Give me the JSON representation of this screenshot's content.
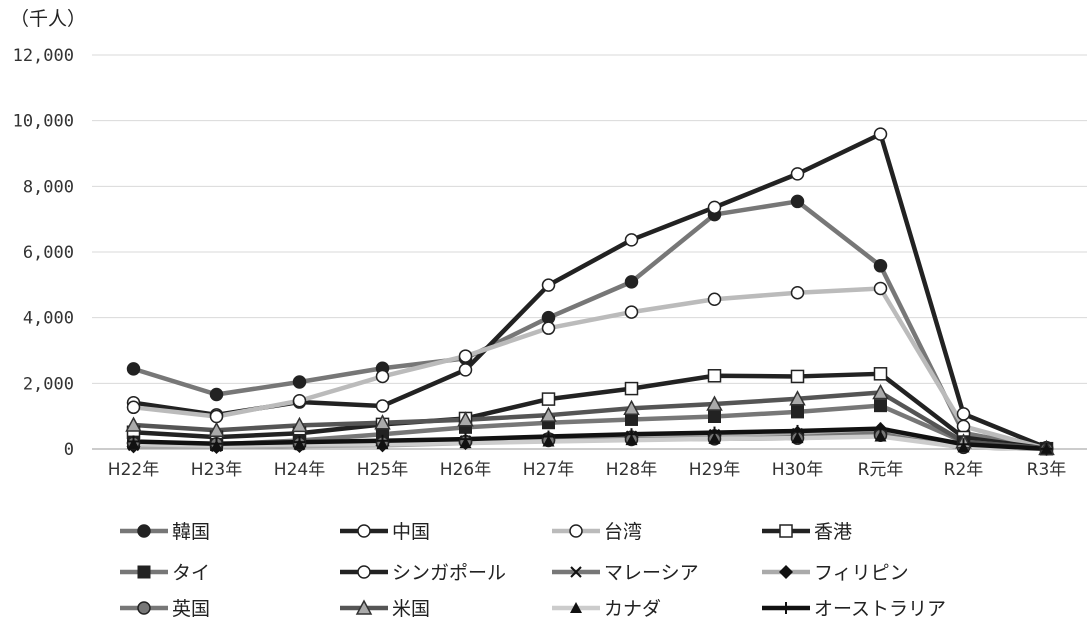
{
  "chart_data": {
    "type": "line",
    "unit_label": "（千人）",
    "categories": [
      "H22年",
      "H23年",
      "H24年",
      "H25年",
      "H26年",
      "H27年",
      "H28年",
      "H29年",
      "H30年",
      "R元年",
      "R2年",
      "R3年"
    ],
    "y_ticks": [
      "0",
      "2,000",
      "4,000",
      "6,000",
      "8,000",
      "10,000",
      "12,000"
    ],
    "ylim": [
      0,
      12000
    ],
    "grid": "horizontal",
    "legend_position": "bottom",
    "series": [
      {
        "name": "韓国",
        "color": "#777777",
        "marker": "circle-filled",
        "marker_fill": "#222222",
        "values": [
          2440,
          1660,
          2040,
          2460,
          2760,
          4000,
          5090,
          7140,
          7540,
          5580,
          490,
          20
        ]
      },
      {
        "name": "中国",
        "color": "#222222",
        "marker": "circle-open",
        "marker_fill": "#ffffff",
        "values": [
          1410,
          1040,
          1430,
          1310,
          2410,
          4990,
          6370,
          7360,
          8380,
          9590,
          1070,
          40
        ]
      },
      {
        "name": "台湾",
        "color": "#bbbbbb",
        "marker": "circle-open",
        "marker_fill": "#ffffff",
        "values": [
          1270,
          990,
          1470,
          2210,
          2830,
          3680,
          4170,
          4560,
          4760,
          4890,
          690,
          10
        ]
      },
      {
        "name": "香港",
        "color": "#222222",
        "marker": "square-open",
        "marker_fill": "#ffffff",
        "values": [
          510,
          360,
          480,
          750,
          930,
          1520,
          1840,
          2230,
          2210,
          2290,
          350,
          10
        ]
      },
      {
        "name": "タイ",
        "color": "#777777",
        "marker": "square-filled",
        "marker_fill": "#222222",
        "values": [
          210,
          140,
          260,
          450,
          660,
          800,
          900,
          990,
          1130,
          1320,
          220,
          10
        ]
      },
      {
        "name": "シンガポール",
        "color": "#222222",
        "marker": "circle-open",
        "marker_fill": "#ffffff",
        "values": [
          180,
          110,
          140,
          190,
          230,
          310,
          360,
          400,
          440,
          490,
          55,
          5
        ]
      },
      {
        "name": "マレーシア",
        "color": "#777777",
        "marker": "x",
        "marker_fill": "#222222",
        "values": [
          110,
          80,
          130,
          180,
          250,
          310,
          390,
          440,
          470,
          500,
          75,
          5
        ]
      },
      {
        "name": "フィリピン",
        "color": "#aaaaaa",
        "marker": "diamond-filled",
        "marker_fill": "#111111",
        "values": [
          80,
          60,
          90,
          110,
          180,
          270,
          350,
          420,
          500,
          610,
          110,
          5
        ]
      },
      {
        "name": "英国",
        "color": "#777777",
        "marker": "circle-filled",
        "marker_fill": "#777777",
        "values": [
          180,
          160,
          170,
          190,
          220,
          260,
          290,
          310,
          330,
          420,
          50,
          5
        ]
      },
      {
        "name": "米国",
        "color": "#555555",
        "marker": "triangle-open",
        "marker_fill": "#aaaaaa",
        "values": [
          730,
          570,
          720,
          800,
          890,
          1030,
          1240,
          1370,
          1530,
          1720,
          220,
          20
        ]
      },
      {
        "name": "カナダ",
        "color": "#cccccc",
        "marker": "triangle-filled",
        "marker_fill": "#111111",
        "values": [
          150,
          100,
          140,
          150,
          180,
          230,
          270,
          310,
          330,
          380,
          50,
          5
        ]
      },
      {
        "name": "オーストラリア",
        "color": "#111111",
        "marker": "plus",
        "marker_fill": "#111111",
        "values": [
          230,
          160,
          210,
          250,
          300,
          380,
          450,
          500,
          550,
          620,
          145,
          5
        ]
      }
    ]
  }
}
